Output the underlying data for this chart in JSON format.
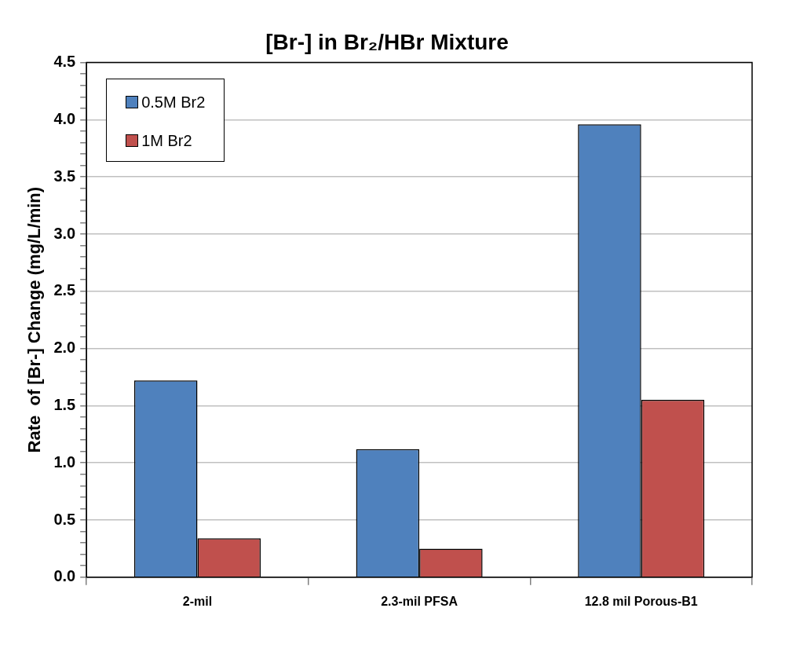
{
  "chart_data": {
    "type": "bar",
    "title": "[Br-] in Br₂/HBr Mixture",
    "ylabel": "Rate  of [Br-] Change (mg/L/min)",
    "categories": [
      "2-mil",
      "2.3-mil PFSA",
      "12.8 mil Porous-B1"
    ],
    "series": [
      {
        "name": "0.5M Br2",
        "color": "#4f81bd",
        "values": [
          1.72,
          1.12,
          3.96
        ]
      },
      {
        "name": "1M Br2",
        "color": "#c0504d",
        "values": [
          0.34,
          0.25,
          1.55
        ]
      }
    ],
    "ylim": [
      0,
      4.5
    ],
    "yticks": [
      {
        "value": 0,
        "label": "0.0"
      },
      {
        "value": 0.1,
        "label": null
      },
      {
        "value": 0.2,
        "label": null
      },
      {
        "value": 0.3,
        "label": null
      },
      {
        "value": 0.4,
        "label": null
      },
      "0.5",
      {
        "value": 0.6,
        "label": null
      },
      {
        "value": 0.7,
        "label": null
      },
      {
        "value": 0.8,
        "label": null
      },
      {
        "value": 0.9,
        "label": null
      },
      {
        "value": 1,
        "label": "1.0"
      },
      {
        "value": 1.1,
        "label": null
      },
      {
        "value": 1.2,
        "label": null
      },
      {
        "value": 1.3,
        "label": null
      },
      {
        "value": 1.4,
        "label": null
      },
      1.5,
      {
        "value": 1.6,
        "label": null
      },
      {
        "value": 1.7,
        "label": null
      },
      {
        "value": 1.8,
        "label": null
      },
      {
        "value": 1.9,
        "label": null
      },
      {
        "value": 2,
        "label": "2.0"
      },
      {
        "value": 2.1,
        "label": null
      },
      {
        "value": 2.2,
        "label": null
      },
      {
        "value": 2.3,
        "label": null
      },
      {
        "value": 2.4,
        "label": null
      },
      2.5,
      {
        "value": 2.6,
        "label": null
      },
      {
        "value": 2.7,
        "label": null
      },
      {
        "value": 2.8,
        "label": null
      },
      {
        "value": 2.9,
        "label": null
      },
      {
        "value": 3,
        "label": "3.0"
      },
      {
        "value": 3.1,
        "label": null
      },
      {
        "value": 3.2,
        "label": null
      },
      {
        "value": 3.3,
        "label": null
      },
      {
        "value": 3.4,
        "label": null
      },
      3.5,
      {
        "value": 3.6,
        "label": null
      },
      {
        "value": 3.7,
        "label": null
      },
      {
        "value": 3.8,
        "label": null
      },
      {
        "value": 3.9,
        "label": null
      },
      {
        "value": 4,
        "label": "4.0"
      },
      {
        "value": 4.1,
        "label": null
      },
      {
        "value": 4.2,
        "label": null
      },
      {
        "value": 4.3,
        "label": null
      },
      {
        "value": 4.4,
        "label": null
      },
      4.5
    ],
    "grid": "y",
    "legend": "top left"
  }
}
